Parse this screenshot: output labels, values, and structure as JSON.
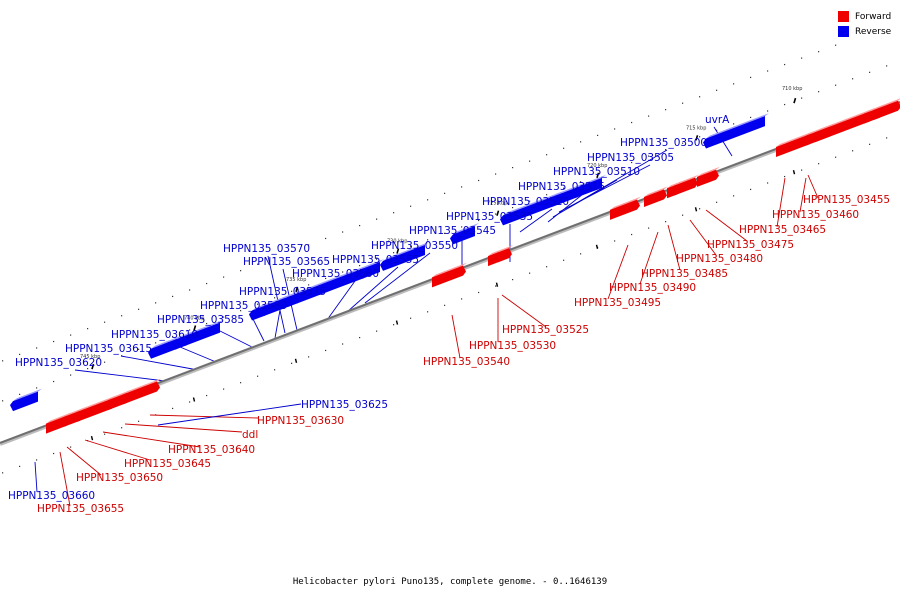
{
  "legend": [
    {
      "label": "Forward",
      "color": "#ee0000"
    },
    {
      "label": "Reverse",
      "color": "#0000ee"
    }
  ],
  "caption": "Helicobacter pylori Puno135, complete genome. - 0..1646139",
  "ticks": [
    "710 kbp",
    "715 kbp",
    "720 kbp",
    "725 kbp",
    "730 kbp",
    "735 kbp",
    "740 kbp",
    "745 kbp"
  ],
  "forward_labels": [
    "HPPN135_03455",
    "HPPN135_03460",
    "HPPN135_03465",
    "HPPN135_03475",
    "HPPN135_03480",
    "HPPN135_03485",
    "HPPN135_03490",
    "HPPN135_03495",
    "HPPN135_03525",
    "HPPN135_03530",
    "HPPN135_03540",
    "HPPN135_03630",
    "ddl",
    "HPPN135_03640",
    "HPPN135_03645",
    "HPPN135_03650",
    "HPPN135_03655"
  ],
  "reverse_labels": [
    "uvrA",
    "HPPN135_03500",
    "HPPN135_03505",
    "HPPN135_03510",
    "HPPN135_03515",
    "HPPN135_03520",
    "HPPN135_03535",
    "HPPN135_03545",
    "HPPN135_03550",
    "HPPN135_03555",
    "HPPN135_03560",
    "HPPN135_03565",
    "HPPN135_03570",
    "HPPN135_03575",
    "HPPN135_03580",
    "HPPN135_03585",
    "HPPN135_03610",
    "HPPN135_03615",
    "HPPN135_03620",
    "HPPN135_03625",
    "HPPN135_03660"
  ],
  "colors": {
    "forward": "#ee0000",
    "reverse": "#0000ee",
    "backbone": "#777777"
  }
}
